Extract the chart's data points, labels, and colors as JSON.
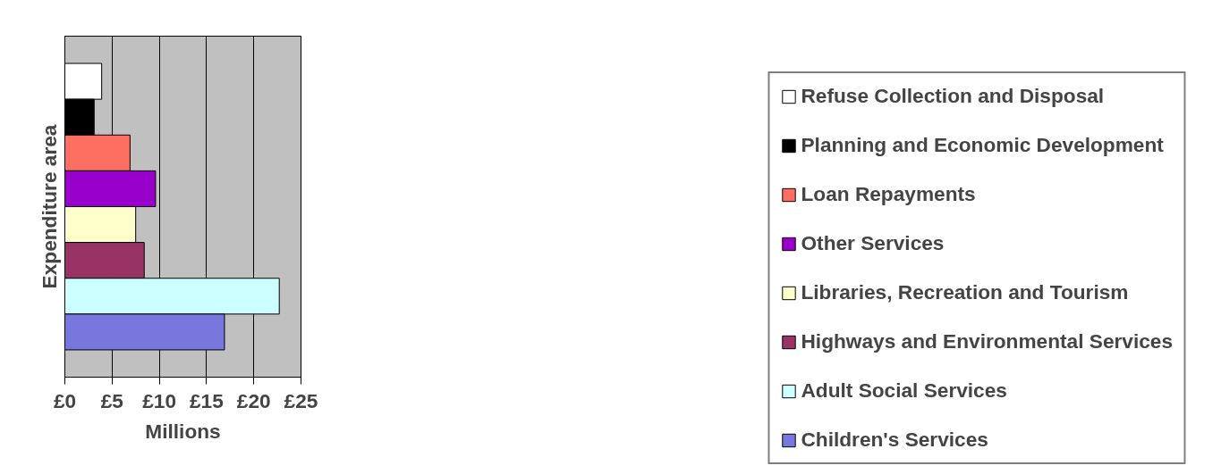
{
  "chart_data": {
    "type": "bar",
    "orientation": "horizontal",
    "ylabel": "Expenditure area",
    "xlabel": "Millions",
    "categories": [
      null
    ],
    "series": [
      {
        "name": "Refuse Collection and Disposal",
        "color": "#ffffff",
        "values": [
          3.9
        ]
      },
      {
        "name": "Planning and Economic Development",
        "color": "#000000",
        "values": [
          3.1
        ]
      },
      {
        "name": "Loan Repayments",
        "color": "#ff6f61",
        "values": [
          6.9
        ]
      },
      {
        "name": "Other Services",
        "color": "#9900cc",
        "values": [
          9.6
        ]
      },
      {
        "name": "Libraries, Recreation and Tourism",
        "color": "#ffffcc",
        "values": [
          7.5
        ]
      },
      {
        "name": "Highways and Environmental Services",
        "color": "#993366",
        "values": [
          8.4
        ]
      },
      {
        "name": "Adult Social Services",
        "color": "#ccffff",
        "values": [
          22.7
        ]
      },
      {
        "name": "Children's Services",
        "color": "#7777dd",
        "values": [
          16.9
        ]
      }
    ],
    "xlim": [
      0,
      25
    ],
    "xticks": [
      {
        "value": 0,
        "label": "£0"
      },
      {
        "value": 5,
        "label": "£5"
      },
      {
        "value": 10,
        "label": "£10"
      },
      {
        "value": 15,
        "label": "£15"
      },
      {
        "value": 20,
        "label": "£20"
      },
      {
        "value": 25,
        "label": "£25"
      }
    ],
    "grid": "x",
    "legend": "right"
  }
}
